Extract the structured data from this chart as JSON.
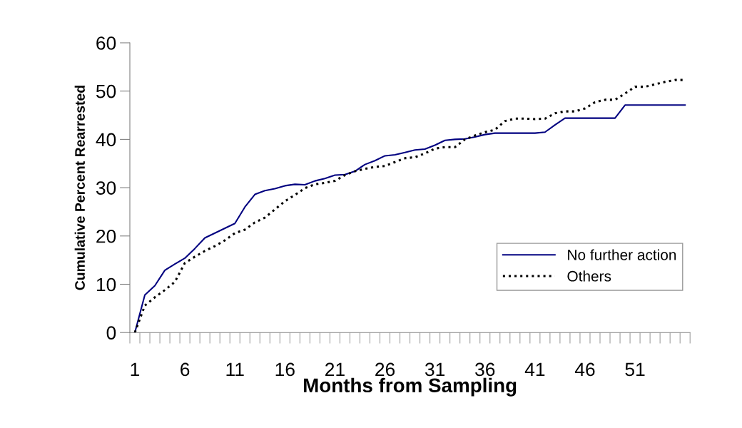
{
  "chart_data": {
    "type": "line",
    "xlabel": "Months from Sampling",
    "ylabel": "Cumulative Percent Rearrested",
    "categories": [
      "1",
      null,
      null,
      null,
      null,
      "6",
      null,
      null,
      null,
      null,
      "11",
      null,
      null,
      null,
      null,
      "16",
      null,
      null,
      null,
      null,
      "21",
      null,
      null,
      null,
      null,
      "26",
      null,
      null,
      null,
      null,
      "31",
      null,
      null,
      null,
      null,
      "36",
      null,
      null,
      null,
      null,
      "41",
      null,
      null,
      null,
      null,
      "46",
      null,
      null,
      null,
      null,
      "51",
      null,
      null,
      null,
      null,
      null
    ],
    "ylim": [
      0,
      60
    ],
    "yticks": [
      0,
      10,
      20,
      30,
      40,
      50,
      60
    ],
    "grid": false,
    "legend": "lower right",
    "marker": "none",
    "series": [
      {
        "name": "No further action",
        "color": "#000080",
        "line_style": "solid",
        "values": [
          0,
          7.8,
          9.7,
          12.9,
          14.2,
          15.4,
          17.4,
          19.6,
          20.6,
          21.6,
          22.6,
          26.0,
          28.6,
          29.4,
          29.8,
          30.4,
          30.7,
          30.6,
          31.4,
          31.9,
          32.6,
          32.7,
          33.4,
          34.8,
          35.6,
          36.6,
          36.8,
          37.3,
          37.8,
          38.0,
          38.8,
          39.8,
          40.0,
          40.1,
          40.5,
          41.0,
          41.3,
          41.3,
          41.3,
          41.3,
          41.3,
          41.5,
          43.0,
          44.4,
          44.4,
          44.4,
          44.4,
          44.4,
          44.4,
          47.1,
          47.1,
          47.1,
          47.1,
          47.1,
          47.1,
          47.1
        ]
      },
      {
        "name": "Others",
        "color": "#000000",
        "line_style": "dotted",
        "values": [
          0,
          5.6,
          7.3,
          8.8,
          10.5,
          14.4,
          15.7,
          16.9,
          17.9,
          19.1,
          20.6,
          21.3,
          22.8,
          23.8,
          25.5,
          27.2,
          28.5,
          29.9,
          30.7,
          31.0,
          31.4,
          32.6,
          33.4,
          33.9,
          34.3,
          34.5,
          35.3,
          36.1,
          36.3,
          37.1,
          38.1,
          38.4,
          38.4,
          40.0,
          40.8,
          41.5,
          42.0,
          43.8,
          44.3,
          44.3,
          44.2,
          44.3,
          45.4,
          45.8,
          45.8,
          46.4,
          47.7,
          48.2,
          48.2,
          49.5,
          50.9,
          50.9,
          51.4,
          51.9,
          52.3,
          52.3
        ]
      }
    ]
  }
}
